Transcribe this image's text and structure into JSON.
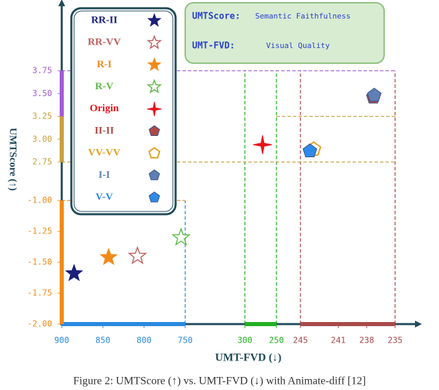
{
  "chart_data": {
    "type": "scatter",
    "x_label": "UMT-FVD (↓)",
    "y_label": "UMTScore (↑)",
    "caption": "Figure 2: UMTScore (↑) vs. UMT-FVD (↓) with Animate-diff [12]",
    "info": [
      {
        "key": "UMTScore:",
        "text": "Semantic Faithfulness"
      },
      {
        "key": "UMT-FVD:",
        "text": "Visual Quality"
      }
    ],
    "x_segments": [
      {
        "xlim": [
          900,
          750
        ],
        "xticks": [
          900,
          850,
          800,
          750
        ],
        "color": "#2a8ae0"
      },
      {
        "xlim": [
          300,
          250
        ],
        "xticks": [
          300,
          250
        ],
        "color": "#22b022"
      },
      {
        "xlim": [
          245,
          235
        ],
        "xticks": [
          245,
          241,
          238,
          235
        ],
        "color": "#a84a4a"
      }
    ],
    "y_segments": [
      {
        "ylim": [
          -2,
          -1
        ],
        "yticks": [
          {
            "value": -2,
            "label": "-2.00"
          },
          -1.75,
          {
            "value": -1.5,
            "label": "-1.50"
          },
          -1.25,
          {
            "value": -1,
            "label": "-1.00"
          }
        ],
        "color": "#f28a1a",
        "tick_colors": [
          "#f28a1a",
          "#f28a1a",
          "#f28a1a",
          "#f28a1a",
          "#f28a1a"
        ]
      },
      {
        "ylim": [
          2.75,
          3.75
        ],
        "yticks": [
          2.75,
          {
            "value": 3,
            "label": "3.00"
          },
          3.25,
          {
            "value": 3.5,
            "label": "3.50"
          },
          3.75
        ],
        "color": "#d2b060",
        "tick_colors": [
          "#c8a040",
          "#c8a040",
          "#c8a040",
          "#a35cd6",
          "#a35cd6"
        ]
      }
    ],
    "series": [
      {
        "name": "RR-II",
        "color": "#1a1f7a",
        "marker": "star",
        "x": [
          885
        ],
        "y": [
          -1.59
        ]
      },
      {
        "name": "RR-VV",
        "color": "#c06060",
        "marker": "star-outline",
        "x": [
          808
        ],
        "y": [
          -1.45
        ]
      },
      {
        "name": "R-I",
        "color": "#f28a1a",
        "marker": "star",
        "x": [
          843
        ],
        "y": [
          -1.46
        ]
      },
      {
        "name": "R-V",
        "color": "#5fb84a",
        "marker": "star-outline",
        "x": [
          755
        ],
        "y": [
          -1.3
        ]
      },
      {
        "name": "Origin",
        "color": "#e8141c",
        "marker": "cross-star",
        "x": [
          272
        ],
        "y": [
          2.94
        ]
      },
      {
        "name": "II-II",
        "color": "#b04848",
        "marker": "pentagon",
        "x": [
          237.3
        ],
        "y": [
          3.46
        ]
      },
      {
        "name": "VV-VV",
        "color": "#e3a020",
        "marker": "pentagon-outline",
        "x": [
          243.6
        ],
        "y": [
          2.89
        ]
      },
      {
        "name": "I-I",
        "color": "#5f7fb5",
        "marker": "pentagon",
        "x": [
          237.2
        ],
        "y": [
          3.48
        ]
      },
      {
        "name": "V-V",
        "color": "#2f8ae8",
        "marker": "pentagon",
        "x": [
          244
        ],
        "y": [
          2.87
        ]
      }
    ]
  }
}
